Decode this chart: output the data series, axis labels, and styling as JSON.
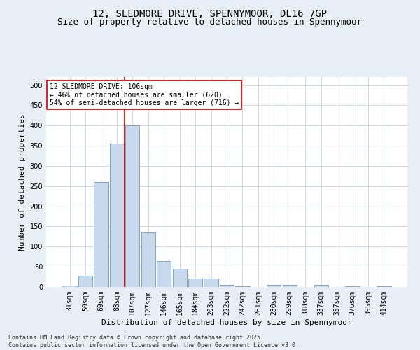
{
  "title": "12, SLEDMORE DRIVE, SPENNYMOOR, DL16 7GP",
  "subtitle": "Size of property relative to detached houses in Spennymoor",
  "xlabel": "Distribution of detached houses by size in Spennymoor",
  "ylabel": "Number of detached properties",
  "bar_labels": [
    "31sqm",
    "50sqm",
    "69sqm",
    "88sqm",
    "107sqm",
    "127sqm",
    "146sqm",
    "165sqm",
    "184sqm",
    "203sqm",
    "222sqm",
    "242sqm",
    "261sqm",
    "280sqm",
    "299sqm",
    "318sqm",
    "337sqm",
    "357sqm",
    "376sqm",
    "395sqm",
    "414sqm"
  ],
  "bar_values": [
    3,
    27,
    260,
    355,
    400,
    135,
    65,
    45,
    20,
    20,
    5,
    2,
    0,
    5,
    5,
    0,
    5,
    0,
    2,
    0,
    2
  ],
  "bar_color": "#c8d9ed",
  "bar_edge_color": "#5b8ab5",
  "vline_color": "#cc0000",
  "vline_x_index": 4,
  "annotation_text": "12 SLEDMORE DRIVE: 106sqm\n← 46% of detached houses are smaller (620)\n54% of semi-detached houses are larger (716) →",
  "annotation_box_color": "#ffffff",
  "annotation_box_edge": "#cc0000",
  "ylim": [
    0,
    520
  ],
  "yticks": [
    0,
    50,
    100,
    150,
    200,
    250,
    300,
    350,
    400,
    450,
    500
  ],
  "footer_text": "Contains HM Land Registry data © Crown copyright and database right 2025.\nContains public sector information licensed under the Open Government Licence v3.0.",
  "background_color": "#e8eef5",
  "plot_bg_color": "#ffffff",
  "grid_color": "#c0c8d8",
  "title_fontsize": 10,
  "subtitle_fontsize": 9,
  "axis_label_fontsize": 8,
  "tick_fontsize": 7,
  "annotation_fontsize": 7,
  "footer_fontsize": 6
}
